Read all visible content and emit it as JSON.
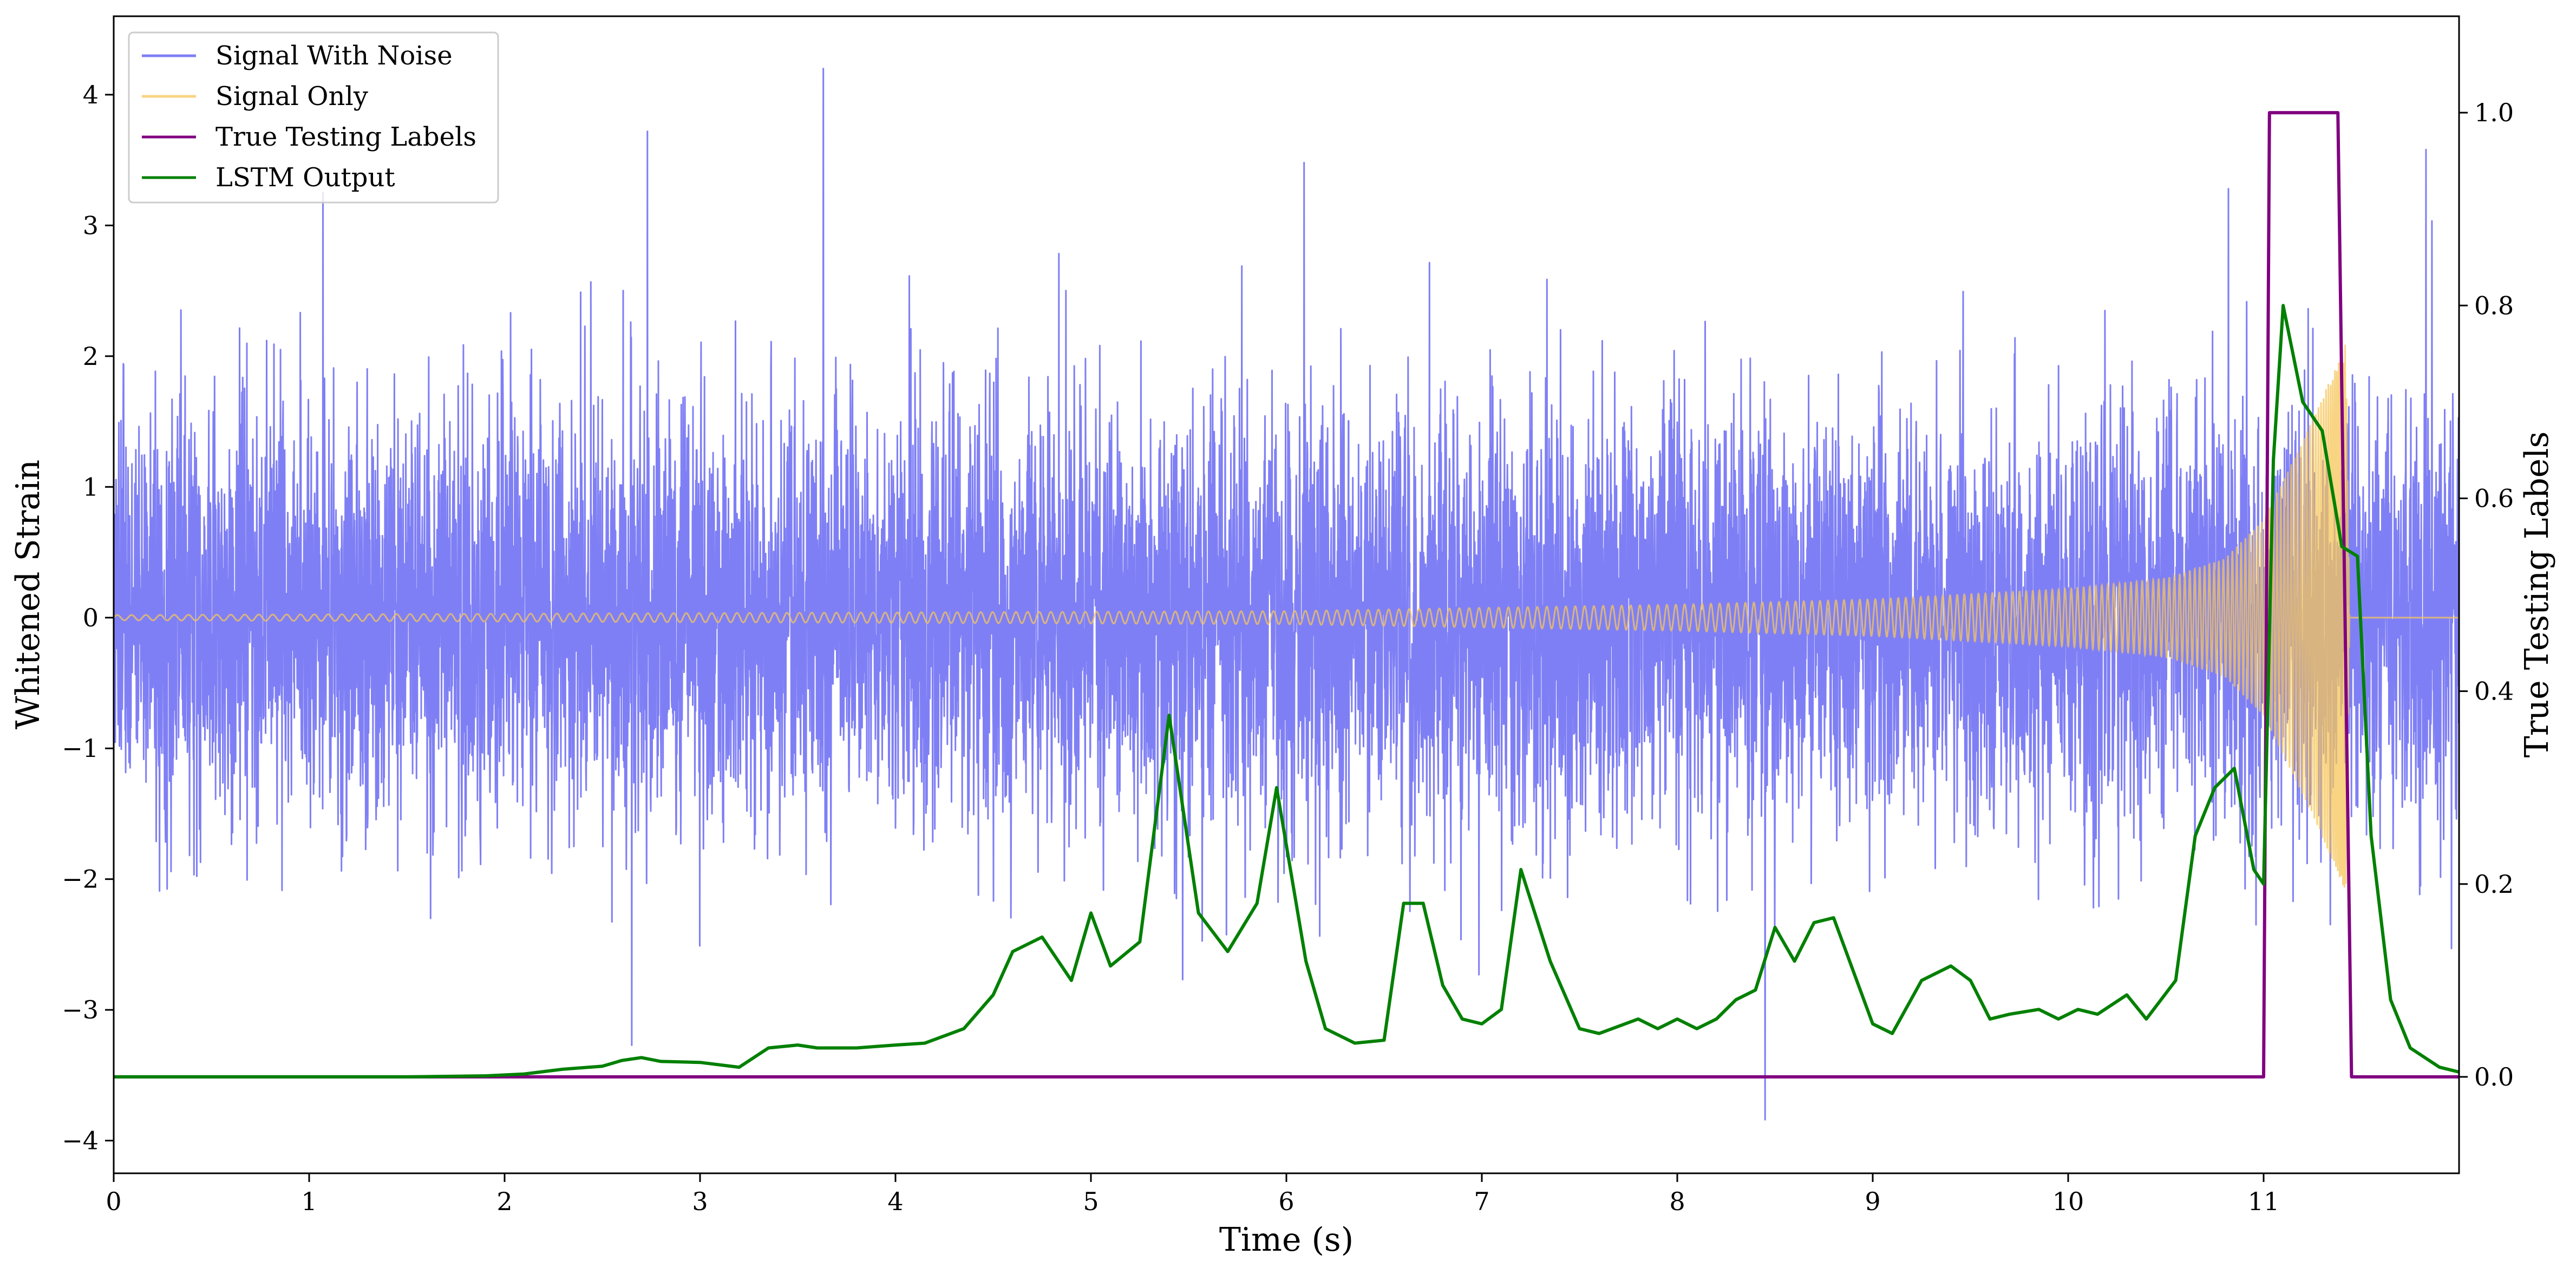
{
  "chart_data": {
    "type": "line",
    "title": "",
    "xlabel": "Time (s)",
    "ylabel": "Whitened Strain",
    "ylabel_right": "True Testing Labels",
    "xlim": [
      0,
      12
    ],
    "ylim": [
      -4.25,
      4.6
    ],
    "ylim_right": [
      -0.1,
      1.1
    ],
    "x_ticks": [
      0,
      1,
      2,
      3,
      4,
      5,
      6,
      7,
      8,
      9,
      10,
      11
    ],
    "x_tick_labels": [
      "0",
      "1",
      "2",
      "3",
      "4",
      "5",
      "6",
      "7",
      "8",
      "9",
      "10",
      "11"
    ],
    "y_ticks": [
      -4,
      -3,
      -2,
      -1,
      0,
      1,
      2,
      3,
      4
    ],
    "y_tick_labels": [
      "−4",
      "−3",
      "−2",
      "−1",
      "0",
      "1",
      "2",
      "3",
      "4"
    ],
    "y_right_ticks": [
      0.0,
      0.2,
      0.4,
      0.6,
      0.8,
      1.0
    ],
    "y_right_tick_labels": [
      "0.0",
      "0.2",
      "0.4",
      "0.6",
      "0.8",
      "1.0"
    ],
    "grid": false,
    "legend_position": "top-left",
    "series": [
      {
        "name": "Signal With Noise",
        "axis": "left",
        "color": "#7f7ff5",
        "noise_std": 0.8,
        "notable_peaks": [
          [
            1.07,
            3.25
          ],
          [
            2.73,
            3.72
          ],
          [
            3.63,
            4.27
          ],
          [
            6.09,
            3.48
          ],
          [
            10.82,
            3.28
          ],
          [
            11.83,
            3.58
          ],
          [
            2.65,
            -3.27
          ],
          [
            8.45,
            -3.84
          ]
        ]
      },
      {
        "name": "Signal Only",
        "axis": "left",
        "color": "#f5c55a",
        "description": "chirp",
        "envelope": [
          [
            0,
            0.02
          ],
          [
            6,
            0.05
          ],
          [
            8,
            0.1
          ],
          [
            9,
            0.14
          ],
          [
            10,
            0.22
          ],
          [
            10.5,
            0.3
          ],
          [
            10.8,
            0.45
          ],
          [
            11.0,
            0.75
          ],
          [
            11.2,
            1.35
          ],
          [
            11.35,
            1.85
          ],
          [
            11.42,
            2.1
          ],
          [
            11.44,
            0.0
          ],
          [
            12,
            0.0
          ]
        ]
      },
      {
        "name": "True Testing Labels",
        "axis": "right",
        "color": "#800080",
        "points": [
          [
            0,
            0
          ],
          [
            11.0,
            0
          ],
          [
            11.03,
            1.0
          ],
          [
            11.38,
            1.0
          ],
          [
            11.45,
            0
          ],
          [
            12,
            0
          ]
        ]
      },
      {
        "name": "LSTM Output",
        "axis": "right",
        "color": "#008000",
        "points": [
          [
            0,
            0
          ],
          [
            1,
            0
          ],
          [
            1.5,
            0
          ],
          [
            1.9,
            0.001
          ],
          [
            2.1,
            0.003
          ],
          [
            2.3,
            0.008
          ],
          [
            2.5,
            0.011
          ],
          [
            2.6,
            0.017
          ],
          [
            2.7,
            0.02
          ],
          [
            2.8,
            0.016
          ],
          [
            3.0,
            0.015
          ],
          [
            3.2,
            0.01
          ],
          [
            3.35,
            0.03
          ],
          [
            3.5,
            0.033
          ],
          [
            3.6,
            0.03
          ],
          [
            3.8,
            0.03
          ],
          [
            4.0,
            0.033
          ],
          [
            4.15,
            0.035
          ],
          [
            4.35,
            0.05
          ],
          [
            4.5,
            0.085
          ],
          [
            4.6,
            0.13
          ],
          [
            4.75,
            0.145
          ],
          [
            4.9,
            0.1
          ],
          [
            5.0,
            0.17
          ],
          [
            5.1,
            0.115
          ],
          [
            5.25,
            0.14
          ],
          [
            5.4,
            0.375
          ],
          [
            5.55,
            0.17
          ],
          [
            5.7,
            0.13
          ],
          [
            5.85,
            0.18
          ],
          [
            5.95,
            0.3
          ],
          [
            6.1,
            0.12
          ],
          [
            6.2,
            0.05
          ],
          [
            6.35,
            0.035
          ],
          [
            6.5,
            0.038
          ],
          [
            6.6,
            0.18
          ],
          [
            6.7,
            0.18
          ],
          [
            6.8,
            0.095
          ],
          [
            6.9,
            0.06
          ],
          [
            7.0,
            0.055
          ],
          [
            7.1,
            0.07
          ],
          [
            7.2,
            0.215
          ],
          [
            7.35,
            0.12
          ],
          [
            7.5,
            0.05
          ],
          [
            7.6,
            0.045
          ],
          [
            7.8,
            0.06
          ],
          [
            7.9,
            0.05
          ],
          [
            8.0,
            0.06
          ],
          [
            8.1,
            0.05
          ],
          [
            8.2,
            0.06
          ],
          [
            8.3,
            0.08
          ],
          [
            8.4,
            0.09
          ],
          [
            8.5,
            0.155
          ],
          [
            8.6,
            0.12
          ],
          [
            8.7,
            0.16
          ],
          [
            8.8,
            0.165
          ],
          [
            9.0,
            0.055
          ],
          [
            9.1,
            0.045
          ],
          [
            9.25,
            0.1
          ],
          [
            9.4,
            0.115
          ],
          [
            9.5,
            0.1
          ],
          [
            9.6,
            0.06
          ],
          [
            9.7,
            0.065
          ],
          [
            9.85,
            0.07
          ],
          [
            9.95,
            0.06
          ],
          [
            10.05,
            0.07
          ],
          [
            10.15,
            0.065
          ],
          [
            10.3,
            0.085
          ],
          [
            10.4,
            0.06
          ],
          [
            10.55,
            0.1
          ],
          [
            10.65,
            0.25
          ],
          [
            10.75,
            0.3
          ],
          [
            10.85,
            0.32
          ],
          [
            10.95,
            0.215
          ],
          [
            11.0,
            0.2
          ],
          [
            11.05,
            0.64
          ],
          [
            11.1,
            0.8
          ],
          [
            11.2,
            0.7
          ],
          [
            11.3,
            0.67
          ],
          [
            11.4,
            0.55
          ],
          [
            11.48,
            0.54
          ],
          [
            11.55,
            0.25
          ],
          [
            11.65,
            0.08
          ],
          [
            11.75,
            0.03
          ],
          [
            11.9,
            0.01
          ],
          [
            12,
            0.005
          ]
        ]
      }
    ]
  }
}
